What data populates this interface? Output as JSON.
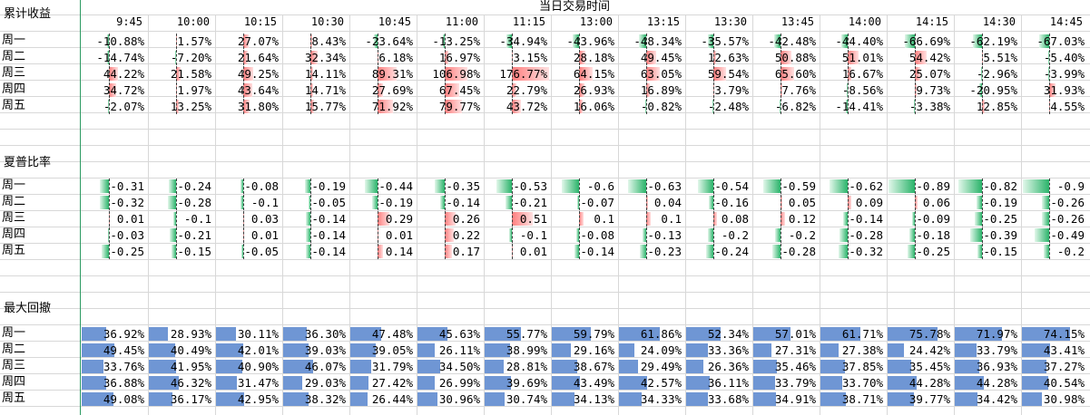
{
  "header": {
    "title": "当日交易时间",
    "times": [
      "9:45",
      "10:00",
      "10:15",
      "10:30",
      "10:45",
      "11:00",
      "11:15",
      "13:00",
      "13:15",
      "13:30",
      "13:45",
      "14:00",
      "14:15",
      "14:30",
      "14:45"
    ]
  },
  "colors": {
    "positive": "#ff7e7e",
    "negative": "#2ab36a",
    "drawdown": "#6f96d4",
    "gridline": "#d8d8d8",
    "frozen_line": "#2e9b63"
  },
  "sections": [
    {
      "title": "累计收益",
      "kind": "bi",
      "max_abs": 176.77,
      "rows": [
        {
          "label": "周一",
          "values": [
            -10.88,
            1.57,
            27.07,
            8.43,
            -23.64,
            -13.25,
            -34.94,
            -43.96,
            -48.34,
            -35.57,
            -42.48,
            -44.4,
            -66.69,
            -62.19,
            -67.03
          ],
          "text": [
            "-10.88%",
            "1.57%",
            "27.07%",
            "8.43%",
            "-23.64%",
            "-13.25%",
            "-34.94%",
            "-43.96%",
            "-48.34%",
            "-35.57%",
            "-42.48%",
            "-44.40%",
            "-66.69%",
            "-62.19%",
            "-67.03%"
          ]
        },
        {
          "label": "周二",
          "values": [
            -14.74,
            -7.2,
            21.64,
            32.34,
            6.18,
            16.97,
            3.15,
            28.18,
            49.45,
            12.63,
            50.88,
            51.01,
            54.42,
            5.51,
            -5.4
          ],
          "text": [
            "-14.74%",
            "-7.20%",
            "21.64%",
            "32.34%",
            "6.18%",
            "16.97%",
            "3.15%",
            "28.18%",
            "49.45%",
            "12.63%",
            "50.88%",
            "51.01%",
            "54.42%",
            "5.51%",
            "-5.40%"
          ]
        },
        {
          "label": "周三",
          "values": [
            44.22,
            21.58,
            49.25,
            14.11,
            89.31,
            106.98,
            176.77,
            64.15,
            63.05,
            59.54,
            65.6,
            16.67,
            25.07,
            -2.96,
            -3.99
          ],
          "text": [
            "44.22%",
            "21.58%",
            "49.25%",
            "14.11%",
            "89.31%",
            "106.98%",
            "176.77%",
            "64.15%",
            "63.05%",
            "59.54%",
            "65.60%",
            "16.67%",
            "25.07%",
            "-2.96%",
            "-3.99%"
          ]
        },
        {
          "label": "周四",
          "values": [
            34.72,
            1.97,
            43.64,
            14.71,
            27.69,
            67.45,
            22.79,
            26.93,
            16.89,
            3.79,
            7.76,
            -8.56,
            9.73,
            -20.95,
            31.93
          ],
          "text": [
            "34.72%",
            "1.97%",
            "43.64%",
            "14.71%",
            "27.69%",
            "67.45%",
            "22.79%",
            "26.93%",
            "16.89%",
            "3.79%",
            "7.76%",
            "-8.56%",
            "9.73%",
            "-20.95%",
            "31.93%"
          ]
        },
        {
          "label": "周五",
          "values": [
            -2.07,
            13.25,
            31.8,
            15.77,
            71.92,
            79.77,
            43.72,
            16.06,
            -0.82,
            -2.48,
            -6.82,
            -14.41,
            -3.38,
            12.85,
            4.55
          ],
          "text": [
            "-2.07%",
            "13.25%",
            "31.80%",
            "15.77%",
            "71.92%",
            "79.77%",
            "43.72%",
            "16.06%",
            "-0.82%",
            "-2.48%",
            "-6.82%",
            "-14.41%",
            "-3.38%",
            "12.85%",
            "4.55%"
          ]
        }
      ]
    },
    {
      "title": "夏普比率",
      "kind": "bi",
      "max_abs": 0.9,
      "rows": [
        {
          "label": "周一",
          "values": [
            -0.31,
            -0.24,
            -0.08,
            -0.19,
            -0.44,
            -0.35,
            -0.53,
            -0.6,
            -0.63,
            -0.54,
            -0.59,
            -0.62,
            -0.89,
            -0.82,
            -0.9
          ],
          "text": [
            "-0.31",
            "-0.24",
            "-0.08",
            "-0.19",
            "-0.44",
            "-0.35",
            "-0.53",
            "-0.6",
            "-0.63",
            "-0.54",
            "-0.59",
            "-0.62",
            "-0.89",
            "-0.82",
            "-0.9"
          ]
        },
        {
          "label": "周二",
          "values": [
            -0.32,
            -0.28,
            -0.1,
            -0.05,
            -0.19,
            -0.14,
            -0.21,
            -0.07,
            0.04,
            -0.16,
            0.05,
            0.09,
            0.06,
            -0.19,
            -0.26
          ],
          "text": [
            "-0.32",
            "-0.28",
            "-0.1",
            "-0.05",
            "-0.19",
            "-0.14",
            "-0.21",
            "-0.07",
            "0.04",
            "-0.16",
            "0.05",
            "0.09",
            "0.06",
            "-0.19",
            "-0.26"
          ]
        },
        {
          "label": "周三",
          "values": [
            0.01,
            -0.1,
            0.03,
            -0.14,
            0.29,
            0.26,
            0.51,
            0.1,
            0.1,
            0.08,
            0.12,
            -0.14,
            -0.09,
            -0.25,
            -0.26
          ],
          "text": [
            "0.01",
            "-0.1",
            "0.03",
            "-0.14",
            "0.29",
            "0.26",
            "0.51",
            "0.1",
            "0.1",
            "0.08",
            "0.12",
            "-0.14",
            "-0.09",
            "-0.25",
            "-0.26"
          ]
        },
        {
          "label": "周四",
          "values": [
            -0.03,
            -0.21,
            0.01,
            -0.14,
            0.01,
            0.22,
            -0.1,
            -0.08,
            -0.13,
            -0.2,
            -0.2,
            -0.28,
            -0.18,
            -0.39,
            -0.49
          ],
          "text": [
            "-0.03",
            "-0.21",
            "0.01",
            "-0.14",
            "0.01",
            "0.22",
            "-0.1",
            "-0.08",
            "-0.13",
            "-0.2",
            "-0.2",
            "-0.28",
            "-0.18",
            "-0.39",
            "-0.49"
          ]
        },
        {
          "label": "周五",
          "values": [
            -0.25,
            -0.15,
            -0.05,
            -0.14,
            0.14,
            0.17,
            0.01,
            -0.14,
            -0.23,
            -0.24,
            -0.28,
            -0.32,
            -0.25,
            -0.15,
            -0.2
          ],
          "text": [
            "-0.25",
            "-0.15",
            "-0.05",
            "-0.14",
            "0.14",
            "0.17",
            "0.01",
            "-0.14",
            "-0.23",
            "-0.24",
            "-0.28",
            "-0.32",
            "-0.25",
            "-0.15",
            "-0.2"
          ]
        }
      ]
    },
    {
      "title": "最大回撤",
      "kind": "dd",
      "rows": [
        {
          "label": "周一",
          "values": [
            36.92,
            28.93,
            30.11,
            36.3,
            47.48,
            45.63,
            55.77,
            59.79,
            61.86,
            52.34,
            57.01,
            61.71,
            75.78,
            71.97,
            74.15
          ],
          "text": [
            "36.92%",
            "28.93%",
            "30.11%",
            "36.30%",
            "47.48%",
            "45.63%",
            "55.77%",
            "59.79%",
            "61.86%",
            "52.34%",
            "57.01%",
            "61.71%",
            "75.78%",
            "71.97%",
            "74.15%"
          ]
        },
        {
          "label": "周二",
          "values": [
            49.45,
            40.49,
            42.01,
            39.03,
            39.05,
            26.11,
            38.99,
            29.16,
            24.09,
            33.36,
            27.31,
            27.38,
            24.42,
            33.79,
            43.41
          ],
          "text": [
            "49.45%",
            "40.49%",
            "42.01%",
            "39.03%",
            "39.05%",
            "26.11%",
            "38.99%",
            "29.16%",
            "24.09%",
            "33.36%",
            "27.31%",
            "27.38%",
            "24.42%",
            "33.79%",
            "43.41%"
          ]
        },
        {
          "label": "周三",
          "values": [
            33.76,
            41.95,
            40.9,
            46.07,
            31.79,
            34.5,
            28.81,
            38.67,
            29.49,
            26.36,
            35.46,
            37.85,
            35.45,
            36.93,
            37.27
          ],
          "text": [
            "33.76%",
            "41.95%",
            "40.90%",
            "46.07%",
            "31.79%",
            "34.50%",
            "28.81%",
            "38.67%",
            "29.49%",
            "26.36%",
            "35.46%",
            "37.85%",
            "35.45%",
            "36.93%",
            "37.27%"
          ]
        },
        {
          "label": "周四",
          "values": [
            36.88,
            46.32,
            31.47,
            29.03,
            27.42,
            26.99,
            39.69,
            43.49,
            42.57,
            36.11,
            33.79,
            33.7,
            44.28,
            44.28,
            40.54
          ],
          "text": [
            "36.88%",
            "46.32%",
            "31.47%",
            "29.03%",
            "27.42%",
            "26.99%",
            "39.69%",
            "43.49%",
            "42.57%",
            "36.11%",
            "33.79%",
            "33.70%",
            "44.28%",
            "44.28%",
            "40.54%"
          ]
        },
        {
          "label": "周五",
          "values": [
            49.08,
            36.17,
            42.95,
            38.32,
            26.44,
            30.96,
            30.74,
            34.13,
            34.33,
            33.68,
            34.91,
            38.71,
            39.77,
            34.42,
            30.98
          ],
          "text": [
            "49.08%",
            "36.17%",
            "42.95%",
            "38.32%",
            "26.44%",
            "30.96%",
            "30.74%",
            "34.13%",
            "34.33%",
            "33.68%",
            "34.91%",
            "38.71%",
            "39.77%",
            "34.42%",
            "30.98%"
          ]
        }
      ]
    }
  ]
}
